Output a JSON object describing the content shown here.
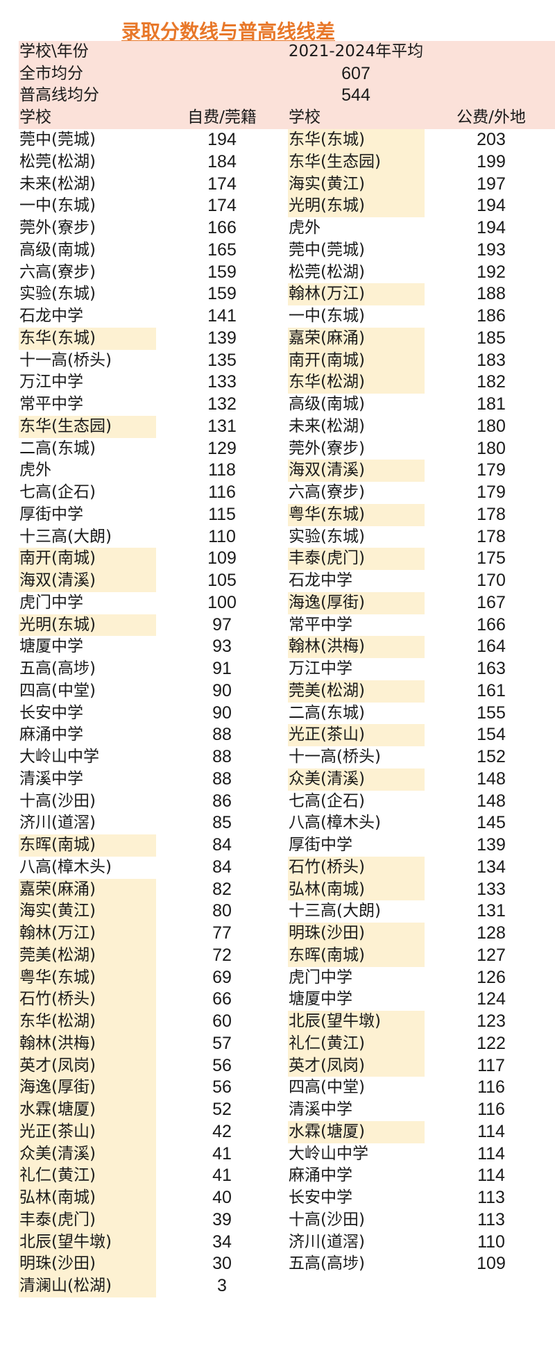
{
  "title": "录取分数线与普高线线差",
  "header": {
    "row1_label": "学校\\年份",
    "row1_value": "2021-2024年平均",
    "row2_label": "全市均分",
    "row2_value": "607",
    "row3_label": "普高线均分",
    "row3_value": "544",
    "col_school_left": "学校",
    "col_left_value": "自费/莞籍",
    "col_school_right": "学校",
    "col_right_value": "公费/外地"
  },
  "colors": {
    "title": "#e8782a",
    "header_band": "#fbe1d9",
    "highlight": "#fdf1d2"
  },
  "left_table": [
    {
      "school": "莞中(莞城)",
      "value": "194",
      "highlight": false
    },
    {
      "school": "松莞(松湖)",
      "value": "184",
      "highlight": false
    },
    {
      "school": "未来(松湖)",
      "value": "174",
      "highlight": false
    },
    {
      "school": "一中(东城)",
      "value": "174",
      "highlight": false
    },
    {
      "school": "莞外(寮步)",
      "value": "166",
      "highlight": false
    },
    {
      "school": "高级(南城)",
      "value": "165",
      "highlight": false
    },
    {
      "school": "六高(寮步)",
      "value": "159",
      "highlight": false
    },
    {
      "school": "实验(东城)",
      "value": "159",
      "highlight": false
    },
    {
      "school": "石龙中学",
      "value": "141",
      "highlight": false
    },
    {
      "school": "东华(东城)",
      "value": "139",
      "highlight": true
    },
    {
      "school": "十一高(桥头)",
      "value": "135",
      "highlight": false
    },
    {
      "school": "万江中学",
      "value": "133",
      "highlight": false
    },
    {
      "school": "常平中学",
      "value": "132",
      "highlight": false
    },
    {
      "school": "东华(生态园)",
      "value": "131",
      "highlight": true
    },
    {
      "school": "二高(东城)",
      "value": "129",
      "highlight": false
    },
    {
      "school": "虎外",
      "value": "118",
      "highlight": false
    },
    {
      "school": "七高(企石)",
      "value": "116",
      "highlight": false
    },
    {
      "school": "厚街中学",
      "value": "115",
      "highlight": false
    },
    {
      "school": "十三高(大朗)",
      "value": "110",
      "highlight": false
    },
    {
      "school": "南开(南城)",
      "value": "109",
      "highlight": true
    },
    {
      "school": "海双(清溪)",
      "value": "105",
      "highlight": true
    },
    {
      "school": "虎门中学",
      "value": "100",
      "highlight": false
    },
    {
      "school": "光明(东城)",
      "value": "97",
      "highlight": true
    },
    {
      "school": "塘厦中学",
      "value": "93",
      "highlight": false
    },
    {
      "school": "五高(高埗)",
      "value": "91",
      "highlight": false
    },
    {
      "school": "四高(中堂)",
      "value": "90",
      "highlight": false
    },
    {
      "school": "长安中学",
      "value": "90",
      "highlight": false
    },
    {
      "school": "麻涌中学",
      "value": "88",
      "highlight": false
    },
    {
      "school": "大岭山中学",
      "value": "88",
      "highlight": false
    },
    {
      "school": "清溪中学",
      "value": "88",
      "highlight": false
    },
    {
      "school": "十高(沙田)",
      "value": "86",
      "highlight": false
    },
    {
      "school": "济川(道滘)",
      "value": "85",
      "highlight": false
    },
    {
      "school": "东晖(南城)",
      "value": "84",
      "highlight": true
    },
    {
      "school": "八高(樟木头)",
      "value": "84",
      "highlight": false
    },
    {
      "school": "嘉荣(麻涌)",
      "value": "82",
      "highlight": true
    },
    {
      "school": "海实(黄江)",
      "value": "80",
      "highlight": true
    },
    {
      "school": "翰林(万江)",
      "value": "77",
      "highlight": true
    },
    {
      "school": "莞美(松湖)",
      "value": "72",
      "highlight": true
    },
    {
      "school": "粤华(东城)",
      "value": "69",
      "highlight": true
    },
    {
      "school": "石竹(桥头)",
      "value": "66",
      "highlight": true
    },
    {
      "school": "东华(松湖)",
      "value": "60",
      "highlight": true
    },
    {
      "school": "翰林(洪梅)",
      "value": "57",
      "highlight": true
    },
    {
      "school": "英才(凤岗)",
      "value": "56",
      "highlight": true
    },
    {
      "school": "海逸(厚街)",
      "value": "56",
      "highlight": true
    },
    {
      "school": "水霖(塘厦)",
      "value": "52",
      "highlight": true
    },
    {
      "school": "光正(茶山)",
      "value": "42",
      "highlight": true
    },
    {
      "school": "众美(清溪)",
      "value": "41",
      "highlight": true
    },
    {
      "school": "礼仁(黄江)",
      "value": "41",
      "highlight": true
    },
    {
      "school": "弘林(南城)",
      "value": "40",
      "highlight": true
    },
    {
      "school": "丰泰(虎门)",
      "value": "39",
      "highlight": true
    },
    {
      "school": "北辰(望牛墩)",
      "value": "34",
      "highlight": true
    },
    {
      "school": "明珠(沙田)",
      "value": "30",
      "highlight": true
    },
    {
      "school": "清澜山(松湖)",
      "value": "3",
      "highlight": true
    }
  ],
  "right_table": [
    {
      "school": "东华(东城)",
      "value": "203",
      "highlight": true
    },
    {
      "school": "东华(生态园)",
      "value": "199",
      "highlight": true
    },
    {
      "school": "海实(黄江)",
      "value": "197",
      "highlight": true
    },
    {
      "school": "光明(东城)",
      "value": "194",
      "highlight": true
    },
    {
      "school": "虎外",
      "value": "194",
      "highlight": false
    },
    {
      "school": "莞中(莞城)",
      "value": "193",
      "highlight": false
    },
    {
      "school": "松莞(松湖)",
      "value": "192",
      "highlight": false
    },
    {
      "school": "翰林(万江)",
      "value": "188",
      "highlight": true
    },
    {
      "school": "一中(东城)",
      "value": "186",
      "highlight": false
    },
    {
      "school": "嘉荣(麻涌)",
      "value": "185",
      "highlight": true
    },
    {
      "school": "南开(南城)",
      "value": "183",
      "highlight": true
    },
    {
      "school": "东华(松湖)",
      "value": "182",
      "highlight": true
    },
    {
      "school": "高级(南城)",
      "value": "181",
      "highlight": false
    },
    {
      "school": "未来(松湖)",
      "value": "180",
      "highlight": false
    },
    {
      "school": "莞外(寮步)",
      "value": "180",
      "highlight": false
    },
    {
      "school": "海双(清溪)",
      "value": "179",
      "highlight": true
    },
    {
      "school": "六高(寮步)",
      "value": "179",
      "highlight": false
    },
    {
      "school": "粤华(东城)",
      "value": "178",
      "highlight": true
    },
    {
      "school": "实验(东城)",
      "value": "178",
      "highlight": false
    },
    {
      "school": "丰泰(虎门)",
      "value": "175",
      "highlight": true
    },
    {
      "school": "石龙中学",
      "value": "170",
      "highlight": false
    },
    {
      "school": "海逸(厚街)",
      "value": "167",
      "highlight": true
    },
    {
      "school": "常平中学",
      "value": "166",
      "highlight": false
    },
    {
      "school": "翰林(洪梅)",
      "value": "164",
      "highlight": true
    },
    {
      "school": "万江中学",
      "value": "163",
      "highlight": false
    },
    {
      "school": "莞美(松湖)",
      "value": "161",
      "highlight": true
    },
    {
      "school": "二高(东城)",
      "value": "155",
      "highlight": false
    },
    {
      "school": "光正(茶山)",
      "value": "154",
      "highlight": true
    },
    {
      "school": "十一高(桥头)",
      "value": "152",
      "highlight": false
    },
    {
      "school": "众美(清溪)",
      "value": "148",
      "highlight": true
    },
    {
      "school": "七高(企石)",
      "value": "148",
      "highlight": false
    },
    {
      "school": "八高(樟木头)",
      "value": "145",
      "highlight": false
    },
    {
      "school": "厚街中学",
      "value": "139",
      "highlight": false
    },
    {
      "school": "石竹(桥头)",
      "value": "134",
      "highlight": true
    },
    {
      "school": "弘林(南城)",
      "value": "133",
      "highlight": true
    },
    {
      "school": "十三高(大朗)",
      "value": "131",
      "highlight": false
    },
    {
      "school": "明珠(沙田)",
      "value": "128",
      "highlight": true
    },
    {
      "school": "东晖(南城)",
      "value": "127",
      "highlight": true
    },
    {
      "school": "虎门中学",
      "value": "126",
      "highlight": false
    },
    {
      "school": "塘厦中学",
      "value": "124",
      "highlight": false
    },
    {
      "school": "北辰(望牛墩)",
      "value": "123",
      "highlight": true
    },
    {
      "school": "礼仁(黄江)",
      "value": "122",
      "highlight": true
    },
    {
      "school": "英才(凤岗)",
      "value": "117",
      "highlight": true
    },
    {
      "school": "四高(中堂)",
      "value": "116",
      "highlight": false
    },
    {
      "school": "清溪中学",
      "value": "116",
      "highlight": false
    },
    {
      "school": "水霖(塘厦)",
      "value": "114",
      "highlight": true
    },
    {
      "school": "大岭山中学",
      "value": "114",
      "highlight": false
    },
    {
      "school": "麻涌中学",
      "value": "114",
      "highlight": false
    },
    {
      "school": "长安中学",
      "value": "113",
      "highlight": false
    },
    {
      "school": "十高(沙田)",
      "value": "113",
      "highlight": false
    },
    {
      "school": "济川(道滘)",
      "value": "110",
      "highlight": false
    },
    {
      "school": "五高(高埗)",
      "value": "109",
      "highlight": false
    }
  ]
}
